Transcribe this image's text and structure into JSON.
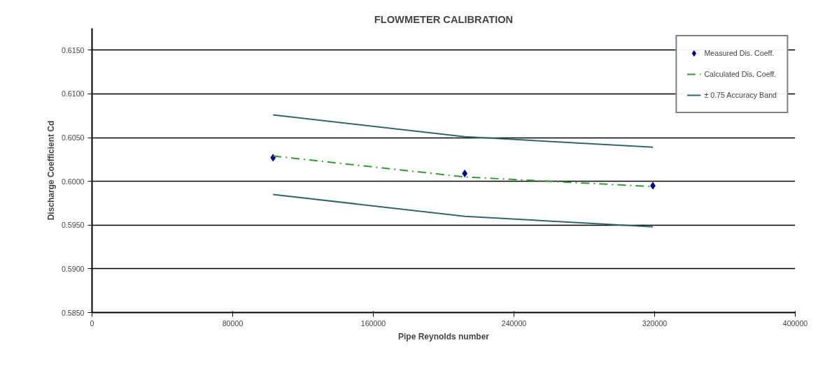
{
  "chart_data": {
    "type": "line",
    "title": "FLOWMETER CALIBRATION",
    "xlabel": "Pipe Reynolds number",
    "ylabel": "Discharge Coefficient Cd",
    "x": [
      103000,
      212000,
      319000
    ],
    "series": [
      {
        "name": "Measured Dis. Coeff.",
        "type": "scatter",
        "marker": "diamond",
        "color": "#000080",
        "values": [
          0.6027,
          0.6009,
          0.5995
        ]
      },
      {
        "name": "Calculated Dis. Coeff.",
        "line_style": "dashdot",
        "color": "#339933",
        "values": [
          0.6029,
          0.6005,
          0.5994
        ]
      },
      {
        "name": "± 0.75 Accuracy Band",
        "line_style": "solid",
        "color": "#336666",
        "values": [
          0.6076,
          0.6051,
          0.6039
        ]
      },
      {
        "line_style": "solid",
        "color": "#336666",
        "values": [
          0.5985,
          0.596,
          0.5948
        ]
      }
    ],
    "xlim": [
      0,
      400000
    ],
    "xticks": [
      0,
      80000,
      160000,
      240000,
      320000,
      400000
    ],
    "ylim": [
      0.585,
      0.6175
    ],
    "yticks": [
      {
        "value": 0.585,
        "label": "0.5850"
      },
      {
        "value": 0.59,
        "label": "0.5900"
      },
      {
        "value": 0.595,
        "label": "0.5950"
      },
      {
        "value": 0.6,
        "label": "0.6000"
      },
      {
        "value": 0.605,
        "label": "0.6050"
      },
      {
        "value": 0.61,
        "label": "0.6100"
      },
      {
        "value": 0.615,
        "label": "0.6150"
      }
    ],
    "grid": "y",
    "legend": "top right"
  }
}
